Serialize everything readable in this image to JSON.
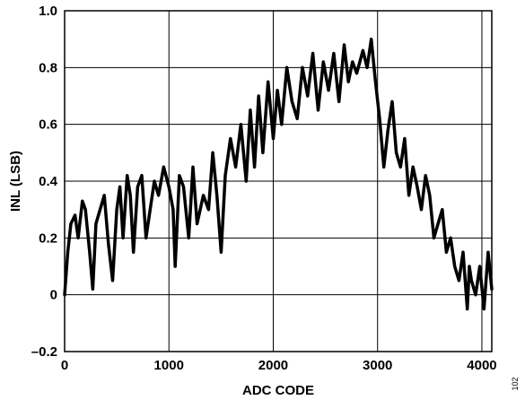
{
  "chart_data": {
    "type": "line",
    "title": "",
    "xlabel": "ADC CODE",
    "ylabel": "INL (LSB)",
    "xlim": [
      0,
      4095
    ],
    "ylim": [
      -0.2,
      1.0
    ],
    "grid": true,
    "x_ticks": [
      0,
      1000,
      2000,
      3000,
      4000
    ],
    "x_tick_labels": [
      "0",
      "1000",
      "2000",
      "3000",
      "4000"
    ],
    "y_ticks": [
      -0.2,
      0,
      0.2,
      0.4,
      0.6,
      0.8,
      1.0
    ],
    "y_tick_labels": [
      "–0.2",
      "0",
      "0.2",
      "0.4",
      "0.6",
      "0.8",
      "1.0"
    ],
    "series": [
      {
        "color": "#000000",
        "x": [
          0,
          30,
          60,
          100,
          130,
          170,
          200,
          240,
          270,
          300,
          340,
          380,
          420,
          460,
          500,
          530,
          560,
          600,
          630,
          660,
          700,
          740,
          780,
          820,
          860,
          900,
          950,
          1000,
          1040,
          1060,
          1100,
          1140,
          1190,
          1230,
          1270,
          1330,
          1380,
          1420,
          1460,
          1500,
          1540,
          1590,
          1640,
          1690,
          1740,
          1780,
          1820,
          1860,
          1900,
          1950,
          2000,
          2040,
          2080,
          2130,
          2180,
          2230,
          2280,
          2330,
          2380,
          2430,
          2480,
          2530,
          2580,
          2630,
          2680,
          2720,
          2760,
          2800,
          2860,
          2900,
          2940,
          2980,
          3020,
          3060,
          3100,
          3140,
          3180,
          3220,
          3260,
          3300,
          3340,
          3380,
          3420,
          3460,
          3500,
          3540,
          3580,
          3620,
          3660,
          3700,
          3740,
          3780,
          3820,
          3860,
          3880,
          3900,
          3940,
          3980,
          4020,
          4060,
          4095
        ],
        "y": [
          0.0,
          0.15,
          0.25,
          0.28,
          0.2,
          0.33,
          0.3,
          0.15,
          0.02,
          0.25,
          0.3,
          0.35,
          0.18,
          0.05,
          0.3,
          0.38,
          0.2,
          0.42,
          0.35,
          0.15,
          0.38,
          0.42,
          0.2,
          0.3,
          0.4,
          0.35,
          0.45,
          0.38,
          0.3,
          0.1,
          0.42,
          0.38,
          0.2,
          0.45,
          0.25,
          0.35,
          0.3,
          0.5,
          0.35,
          0.15,
          0.42,
          0.55,
          0.45,
          0.6,
          0.4,
          0.65,
          0.45,
          0.7,
          0.5,
          0.75,
          0.55,
          0.72,
          0.6,
          0.8,
          0.68,
          0.62,
          0.8,
          0.7,
          0.85,
          0.65,
          0.82,
          0.72,
          0.85,
          0.68,
          0.88,
          0.75,
          0.82,
          0.78,
          0.86,
          0.8,
          0.9,
          0.75,
          0.62,
          0.45,
          0.58,
          0.68,
          0.5,
          0.45,
          0.55,
          0.35,
          0.45,
          0.38,
          0.3,
          0.42,
          0.35,
          0.2,
          0.25,
          0.3,
          0.15,
          0.2,
          0.1,
          0.05,
          0.15,
          -0.05,
          0.1,
          0.05,
          0.0,
          0.1,
          -0.05,
          0.15,
          0.02
        ]
      }
    ]
  },
  "figure_id": "102"
}
